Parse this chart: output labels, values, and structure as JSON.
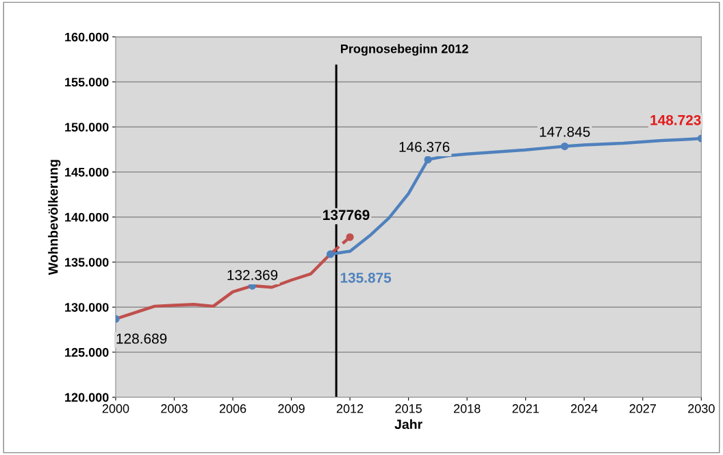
{
  "chart_data": {
    "type": "line",
    "xlabel": "Jahr",
    "ylabel": "Wohnbevölkerung",
    "xlim": [
      2000,
      2030
    ],
    "xticks": [
      2000,
      2003,
      2006,
      2009,
      2012,
      2015,
      2018,
      2021,
      2024,
      2027,
      2030
    ],
    "ylim": [
      120000,
      160000
    ],
    "yticks": [
      {
        "value": 120000,
        "label": "120.000"
      },
      {
        "value": 125000,
        "label": "125.000"
      },
      {
        "value": 130000,
        "label": "130.000"
      },
      {
        "value": 135000,
        "label": "135.000"
      },
      {
        "value": 140000,
        "label": "140.000"
      },
      {
        "value": 145000,
        "label": "145.000"
      },
      {
        "value": 150000,
        "label": "150.000"
      },
      {
        "value": 155000,
        "label": "155.000"
      },
      {
        "value": 160000,
        "label": "160.000"
      }
    ],
    "grid": "y",
    "marker": "none",
    "series": [
      {
        "color": "#4f81bd",
        "x": [
          2011,
          2012,
          2013,
          2014,
          2015,
          2016,
          2017,
          2018,
          2019,
          2020,
          2021,
          2022,
          2023,
          2024,
          2025,
          2026,
          2027,
          2028,
          2029,
          2030
        ],
        "values": [
          135875,
          136200,
          137900,
          139900,
          142600,
          146376,
          146800,
          147000,
          147150,
          147300,
          147450,
          147650,
          147845,
          148000,
          148100,
          148200,
          148350,
          148500,
          148600,
          148723
        ]
      },
      {
        "color": "#c0504d",
        "x": [
          2000,
          2001,
          2002,
          2003,
          2004,
          2005,
          2006,
          2007,
          2008,
          2009,
          2010,
          2011
        ],
        "values": [
          128689,
          129400,
          130100,
          130200,
          130300,
          130100,
          131700,
          132369,
          132200,
          133000,
          133700,
          135900
        ]
      },
      {
        "color": "#c0504d",
        "line_style": "dashed",
        "x": [
          2011,
          2012
        ],
        "values": [
          135900,
          137769
        ]
      },
      {
        "type": "scatter",
        "marker": "circle",
        "color": "#4f81bd",
        "x": [
          2000,
          2007,
          2011,
          2016,
          2023,
          2030
        ],
        "values": [
          128689,
          132369,
          135875,
          146376,
          147845,
          148723
        ]
      },
      {
        "type": "scatter",
        "marker": "circle",
        "color": "#c0504d",
        "x": [
          2012
        ],
        "values": [
          137769
        ]
      }
    ],
    "ref_lines": [
      {
        "axis": "x",
        "value": 2011.3,
        "label": "Prognosebeginn 2012",
        "color": "#000000"
      }
    ],
    "annotations": [
      {
        "text": "128.689",
        "x": 2000,
        "y": 128689
      },
      {
        "text": "132.369",
        "x": 2007,
        "y": 132369
      },
      {
        "text": "135.875",
        "x": 2011,
        "y": 135875
      },
      {
        "text": "137769",
        "x": 2012,
        "y": 137769
      },
      {
        "text": "146.376",
        "x": 2016,
        "y": 146376
      },
      {
        "text": "147.845",
        "x": 2023,
        "y": 147845
      },
      {
        "text": "148.723",
        "x": 2030,
        "y": 148723
      }
    ]
  }
}
